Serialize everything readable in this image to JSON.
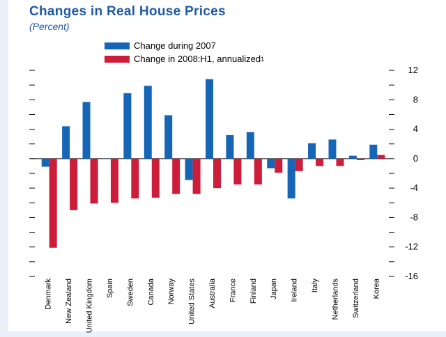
{
  "header": {
    "title": "Changes in Real House Prices",
    "subtitle": "(Percent)"
  },
  "legend": {
    "series1": "Change during 2007",
    "series2": "Change in 2008:H1, annualized",
    "series2_footnote": "1"
  },
  "colors": {
    "series1": "#1566b7",
    "series2": "#cc1d3a",
    "title": "#1f5aa6"
  },
  "chart_data": {
    "type": "bar",
    "title": "Changes in Real House Prices",
    "subtitle": "(Percent)",
    "categories": [
      "Denmark",
      "New Zealand",
      "United Kingdom",
      "Spain",
      "Sweden",
      "Canada",
      "Norway",
      "United States",
      "Australia",
      "France",
      "Finland",
      "Japan",
      "Ireland",
      "Italy",
      "Netherlands",
      "Switzerland",
      "Korea"
    ],
    "series": [
      {
        "name": "Change during 2007",
        "values": [
          -1.1,
          4.4,
          7.7,
          0,
          8.9,
          9.9,
          5.9,
          -2.9,
          10.8,
          3.2,
          3.6,
          -1.3,
          -5.4,
          2.1,
          2.6,
          0.4,
          1.9
        ]
      },
      {
        "name": "Change in 2008:H1, annualized",
        "values": [
          -12.1,
          -7.0,
          -6.1,
          -6.0,
          -5.4,
          -5.3,
          -4.8,
          -4.8,
          -4.0,
          -3.5,
          -3.5,
          -1.9,
          -1.7,
          -1.0,
          -1.0,
          -0.2,
          0.5
        ]
      }
    ],
    "ylim": [
      -16,
      12
    ],
    "yticks": [
      12,
      8,
      4,
      0,
      -4,
      -8,
      -12,
      -16
    ],
    "grid": false,
    "legend_position": "top"
  }
}
